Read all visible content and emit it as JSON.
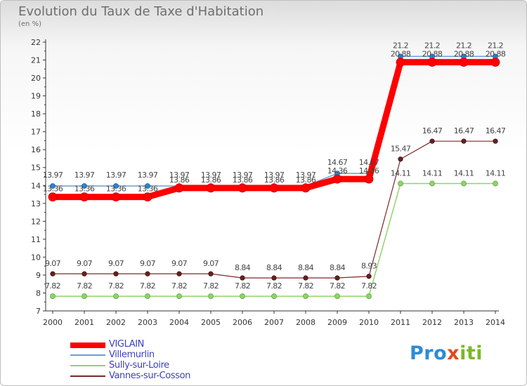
{
  "title": "Evolution du Taux de Taxe d'Habitation",
  "unit_label": "(en %)",
  "logo_text": "Proxiti",
  "chart_data": {
    "type": "line",
    "title": "Evolution du Taux de Taxe d'Habitation",
    "ylabel": "(en %)",
    "xlabel": "",
    "ylim": [
      7,
      22
    ],
    "yticks": [
      "7",
      "8",
      "9",
      "10",
      "11",
      "12",
      "13",
      "14",
      "15",
      "16",
      "17",
      "18",
      "19",
      "20",
      "21",
      "22"
    ],
    "categories": [
      "2000",
      "2001",
      "2002",
      "2003",
      "2004",
      "2005",
      "2006",
      "2007",
      "2008",
      "2009",
      "2010",
      "2011",
      "2012",
      "2013",
      "2014"
    ],
    "grid": false,
    "legend_position": "bottom-left",
    "series": [
      {
        "name": "VIGLAIN",
        "color": "#ff0000",
        "values": [
          13.36,
          13.36,
          13.36,
          13.36,
          13.86,
          13.86,
          13.86,
          13.86,
          13.86,
          14.36,
          14.36,
          20.88,
          20.88,
          20.88,
          20.88
        ],
        "labels": [
          "13.36",
          "13.36",
          "13.36",
          "13.36",
          "13.86",
          "13.86",
          "13.86",
          "13.86",
          "13.86",
          "14.36",
          "14.36",
          "20.88",
          "20.88",
          "20.88",
          "20.88"
        ]
      },
      {
        "name": "Villemurlin",
        "color": "#6a9fd4",
        "values": [
          13.97,
          13.97,
          13.97,
          13.97,
          13.97,
          13.97,
          13.97,
          13.97,
          13.97,
          14.67,
          14.67,
          21.2,
          21.2,
          21.2,
          21.2
        ],
        "labels": [
          "13.97",
          "13.97",
          "13.97",
          "13.97",
          "13.97",
          "13.97",
          "13.97",
          "13.97",
          "13.97",
          "14.67",
          "14.67",
          "21.2",
          "21.2",
          "21.2",
          "21.2"
        ]
      },
      {
        "name": "Sully-sur-Loire",
        "color": "#8fd46a",
        "values": [
          7.82,
          7.82,
          7.82,
          7.82,
          7.82,
          7.82,
          7.82,
          7.82,
          7.82,
          7.82,
          7.82,
          14.11,
          14.11,
          14.11,
          14.11
        ],
        "labels": [
          "7.82",
          "7.82",
          "7.82",
          "7.82",
          "7.82",
          "7.82",
          "7.82",
          "7.82",
          "7.82",
          "7.82",
          "7.82",
          "14.11",
          "14.11",
          "14.11",
          "14.11"
        ]
      },
      {
        "name": "Vannes-sur-Cosson",
        "color": "#7a2a2a",
        "values": [
          9.07,
          9.07,
          9.07,
          9.07,
          9.07,
          9.07,
          8.84,
          8.84,
          8.84,
          8.84,
          8.93,
          15.47,
          16.47,
          16.47,
          16.47
        ],
        "labels": [
          "9.07",
          "9.07",
          "9.07",
          "9.07",
          "9.07",
          "9.07",
          "8.84",
          "8.84",
          "8.84",
          "8.84",
          "8.93",
          "15.47",
          "16.47",
          "16.47",
          "16.47"
        ]
      }
    ]
  }
}
